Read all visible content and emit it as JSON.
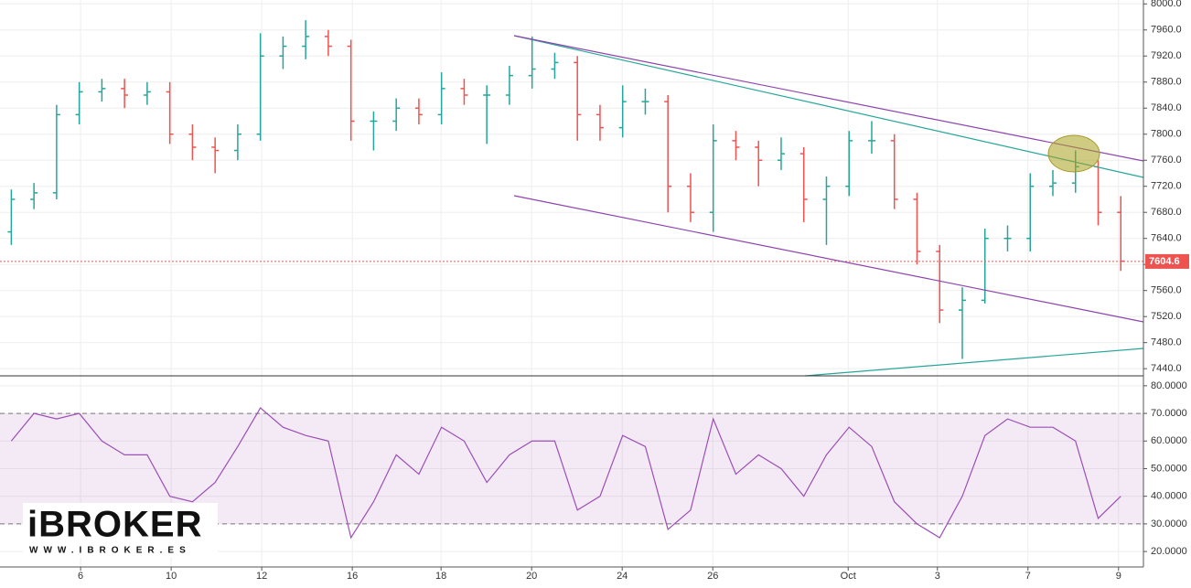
{
  "chart_data": [
    {
      "type": "ohlc",
      "x": [
        0.25,
        0.75,
        1.25,
        1.75,
        2.25,
        2.75,
        3.25,
        3.75,
        4.25,
        4.75,
        5.25,
        5.75,
        6.25,
        6.75,
        7.25,
        7.75,
        8.25,
        8.75,
        9.25,
        9.75,
        10.25,
        10.75,
        11.25,
        11.75,
        12.25,
        12.75,
        13.25,
        13.75,
        14.25,
        14.75,
        15.25,
        15.75,
        16.25,
        16.75,
        17.25,
        17.75,
        18.25,
        18.75,
        19.25,
        19.75,
        20.25,
        20.75,
        21.25,
        21.75,
        22.25,
        22.75,
        23.25,
        23.75,
        24.25,
        24.75
      ],
      "open": [
        7650,
        7700,
        7710,
        7830,
        7865,
        7870,
        7860,
        7865,
        7800,
        7780,
        7775,
        7800,
        7920,
        7935,
        7950,
        7935,
        7820,
        7820,
        7840,
        7830,
        7870,
        7860,
        7860,
        7890,
        7900,
        7910,
        7830,
        7810,
        7850,
        7850,
        7720,
        7680,
        7790,
        7780,
        7760,
        7770,
        7700,
        7720,
        7790,
        7790,
        7700,
        7620,
        7530,
        7545,
        7640,
        7640,
        7720,
        7725,
        7750,
        7680
      ],
      "high": [
        7715,
        7725,
        7845,
        7880,
        7885,
        7885,
        7880,
        7880,
        7815,
        7795,
        7815,
        7955,
        7950,
        7975,
        7960,
        7945,
        7835,
        7855,
        7855,
        7895,
        7885,
        7875,
        7905,
        7950,
        7925,
        7920,
        7845,
        7875,
        7870,
        7860,
        7740,
        7815,
        7805,
        7790,
        7795,
        7780,
        7735,
        7805,
        7820,
        7800,
        7710,
        7630,
        7565,
        7655,
        7660,
        7740,
        7745,
        7775,
        7760,
        7705
      ],
      "low": [
        7630,
        7685,
        7700,
        7815,
        7850,
        7840,
        7845,
        7785,
        7760,
        7740,
        7760,
        7790,
        7900,
        7915,
        7920,
        7790,
        7775,
        7805,
        7815,
        7815,
        7845,
        7785,
        7845,
        7870,
        7885,
        7790,
        7790,
        7795,
        7830,
        7680,
        7665,
        7650,
        7760,
        7720,
        7745,
        7665,
        7630,
        7705,
        7770,
        7685,
        7600,
        7510,
        7455,
        7540,
        7620,
        7620,
        7705,
        7710,
        7660,
        7590
      ],
      "close": [
        7700,
        7710,
        7830,
        7865,
        7870,
        7860,
        7865,
        7800,
        7780,
        7775,
        7800,
        7920,
        7935,
        7950,
        7935,
        7820,
        7820,
        7840,
        7830,
        7870,
        7860,
        7860,
        7890,
        7900,
        7910,
        7830,
        7810,
        7850,
        7850,
        7720,
        7680,
        7790,
        7780,
        7760,
        7770,
        7700,
        7720,
        7790,
        7790,
        7700,
        7620,
        7530,
        7545,
        7640,
        7640,
        7720,
        7725,
        7750,
        7680,
        7605
      ],
      "up_color": "#26a69a",
      "down_color": "#ef5350",
      "xlim": [
        0,
        25.25
      ],
      "ylim": [
        7429,
        8006
      ],
      "yticks": [
        {
          "value": 7440,
          "label": "7440.0"
        },
        {
          "value": 7480,
          "label": "7480.0"
        },
        {
          "value": 7520,
          "label": "7520.0"
        },
        {
          "value": 7560,
          "label": "7560.0"
        },
        {
          "value": 7600,
          "label": "7600.0"
        },
        {
          "value": 7640,
          "label": "7640.0"
        },
        {
          "value": 7680,
          "label": "7680.0"
        },
        {
          "value": 7720,
          "label": "7720.0"
        },
        {
          "value": 7760,
          "label": "7760.0"
        },
        {
          "value": 7800,
          "label": "7800.0"
        },
        {
          "value": 7840,
          "label": "7840.0"
        },
        {
          "value": 7880,
          "label": "7880.0"
        },
        {
          "value": 7920,
          "label": "7920.0"
        },
        {
          "value": 7960,
          "label": "7960.0"
        },
        {
          "value": 8000,
          "label": "8000.0"
        }
      ],
      "last_price": 7604.6,
      "grid": true
    },
    {
      "type": "line",
      "x": [
        0.25,
        0.75,
        1.25,
        1.75,
        2.25,
        2.75,
        3.25,
        3.75,
        4.25,
        4.75,
        5.25,
        5.75,
        6.25,
        6.75,
        7.25,
        7.75,
        8.25,
        8.75,
        9.25,
        9.75,
        10.25,
        10.75,
        11.25,
        11.75,
        12.25,
        12.75,
        13.25,
        13.75,
        14.25,
        14.75,
        15.25,
        15.75,
        16.25,
        16.75,
        17.25,
        17.75,
        18.25,
        18.75,
        19.25,
        19.75,
        20.25,
        20.75,
        21.25,
        21.75,
        22.25,
        22.75,
        23.25,
        23.75,
        24.25,
        24.75
      ],
      "values": [
        60,
        70,
        68,
        70,
        60,
        55,
        55,
        40,
        38,
        45,
        58,
        72,
        65,
        62,
        60,
        25,
        38,
        55,
        48,
        65,
        60,
        45,
        55,
        60,
        60,
        35,
        40,
        62,
        58,
        28,
        35,
        68,
        48,
        55,
        50,
        40,
        55,
        65,
        58,
        38,
        30,
        25,
        40,
        62,
        68,
        65,
        65,
        60,
        32,
        40
      ],
      "color": "#9c4fb5",
      "bands": [
        70,
        30
      ],
      "xlim": [
        0,
        25.25
      ],
      "xticks": [
        {
          "value": 1.78,
          "label": "6"
        },
        {
          "value": 3.78,
          "label": "10"
        },
        {
          "value": 5.78,
          "label": "12"
        },
        {
          "value": 7.78,
          "label": "16"
        },
        {
          "value": 9.74,
          "label": "18"
        },
        {
          "value": 11.74,
          "label": "20"
        },
        {
          "value": 13.74,
          "label": "24"
        },
        {
          "value": 15.74,
          "label": "26"
        },
        {
          "value": 18.73,
          "label": "Oct"
        },
        {
          "value": 20.7,
          "label": "3"
        },
        {
          "value": 22.7,
          "label": "7"
        },
        {
          "value": 24.7,
          "label": "9"
        }
      ],
      "ylim": [
        14.4,
        83.6
      ],
      "yticks": [
        {
          "value": 20,
          "label": "20.0000"
        },
        {
          "value": 30,
          "label": "30.0000"
        },
        {
          "value": 40,
          "label": "40.0000"
        },
        {
          "value": 50,
          "label": "50.0000"
        },
        {
          "value": 60,
          "label": "60.0000"
        },
        {
          "value": 70,
          "label": "70.0000"
        },
        {
          "value": 80,
          "label": "80.0000"
        }
      ],
      "grid": true
    }
  ],
  "watermark": {
    "brand": "iBROKER",
    "url": "WWW.IBROKER.ES"
  }
}
